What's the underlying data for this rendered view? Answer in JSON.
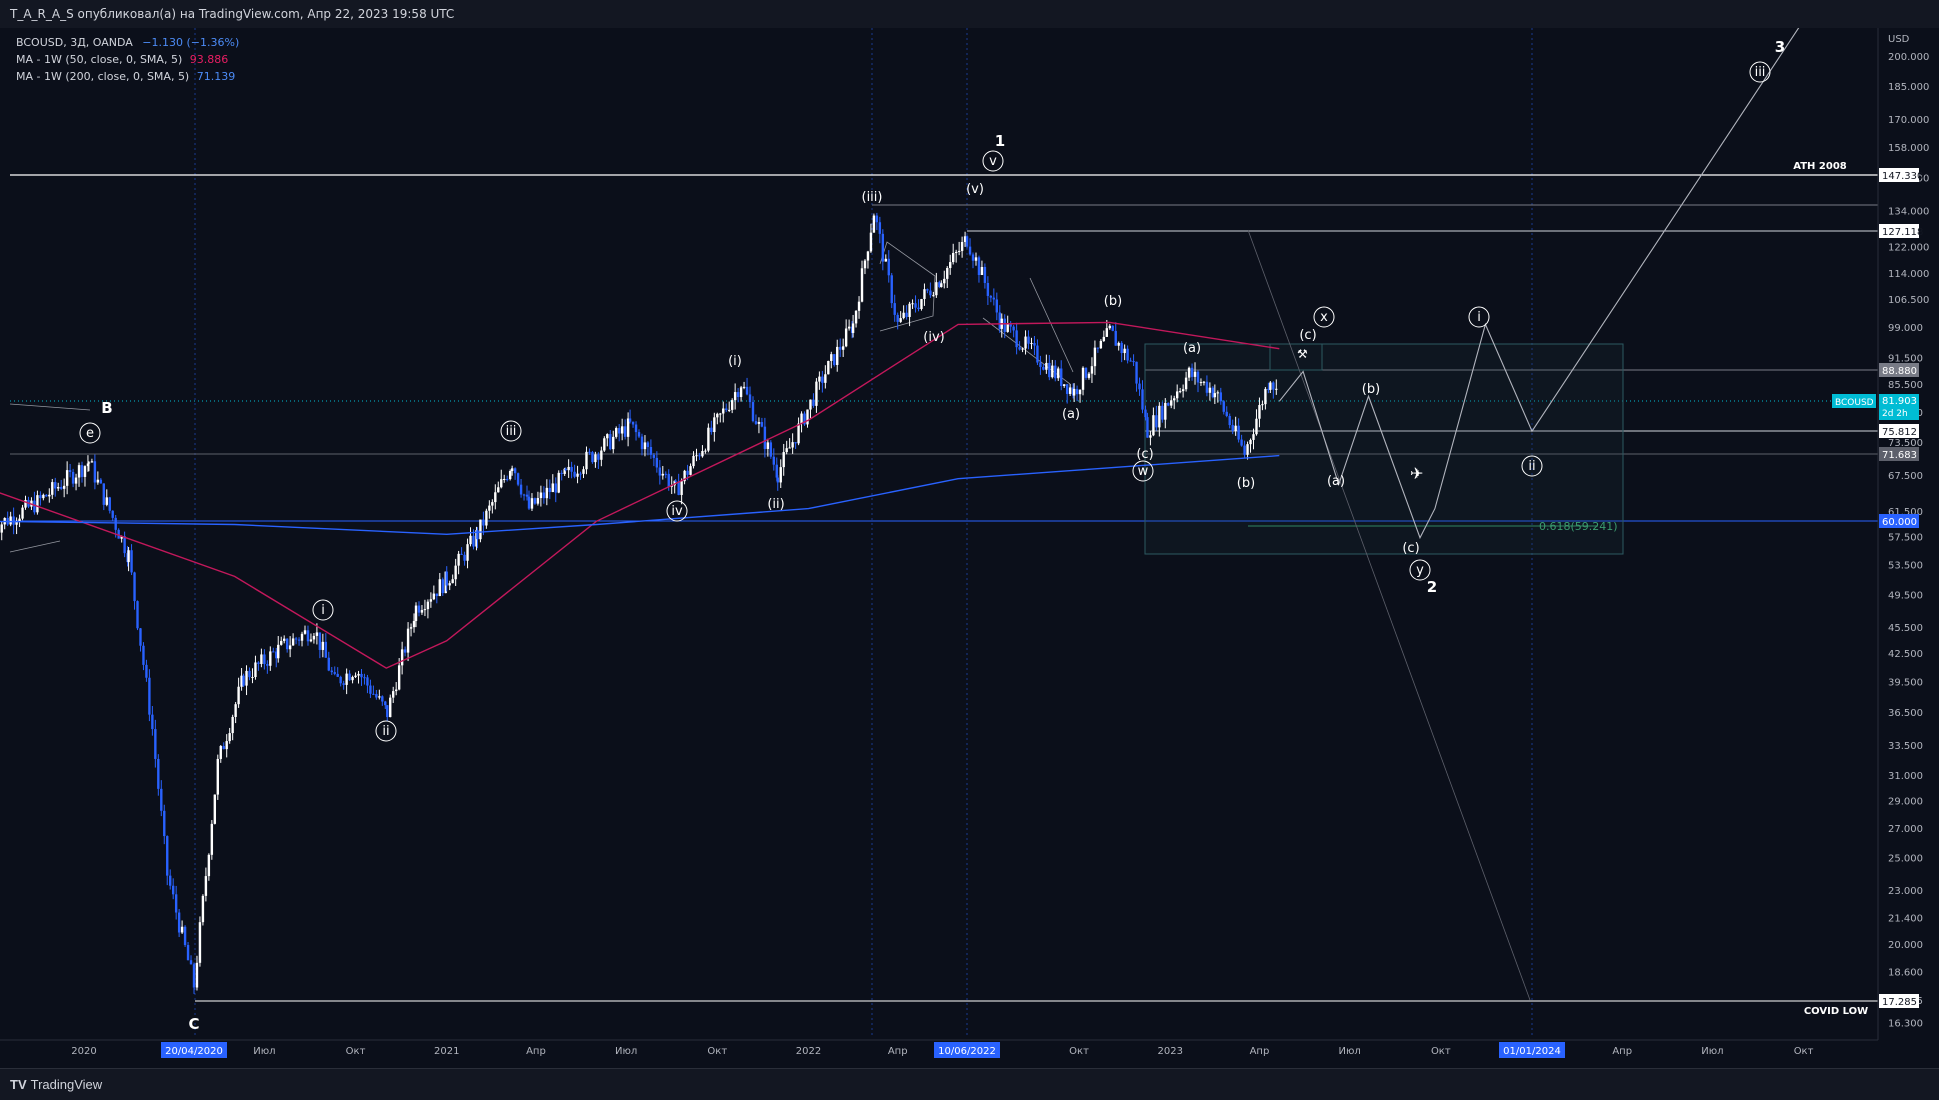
{
  "header": {
    "published": "T_A_R_A_S опубликовал(а) на TradingView.com, Апр 22, 2023 19:58 UTC"
  },
  "legend": {
    "symbol": "BCOUSD, 3Д, OANDA",
    "change": "−1.130 (−1.36%)",
    "ma50_label": "MA - 1W (50, close, 0, SMA, 5)",
    "ma50_value": "93.886",
    "ma200_label": "MA - 1W (200, close, 0, SMA, 5)",
    "ma200_value": "71.139"
  },
  "colors": {
    "background": "#0b0f1a",
    "up": "#ffffff",
    "down": "#2962ff",
    "ma50": "#c2185b",
    "ma200": "#2962ff",
    "change": "#4c8bf5",
    "fib": "#2e7d5b",
    "current_price": "#00bcd4"
  },
  "annotations": {
    "ath": "ATH 2008",
    "covid_low": "COVID LOW",
    "fib_label": "0.618(59.241)"
  },
  "price_labels": {
    "usd": "USD",
    "p147": "147.330",
    "p127": "127.118",
    "p88": "88.880",
    "p81": "81.903",
    "countdown": "2d 2h",
    "p75": "75.812",
    "p71": "71.683",
    "p60": "60.000",
    "p17": "17.285",
    "symbol_tag": "BCOUSD"
  },
  "date_labels": {
    "d1": "20/04/2020",
    "d2": "10/06/2022",
    "d3": "01/01/2024"
  },
  "waves": {
    "B": "B",
    "C": "C",
    "w1": "1",
    "w2": "2",
    "w3": "3",
    "e": "e",
    "i": "i",
    "ii": "ii",
    "iii": "iii",
    "iv": "iv",
    "v": "v",
    "w": "w",
    "x": "x",
    "y": "y",
    "pi": "(i)",
    "pii": "(ii)",
    "piii": "(iii)",
    "piv": "(iv)",
    "pv": "(v)",
    "pa": "(a)",
    "pb": "(b)",
    "pc": "(c)"
  },
  "footer": {
    "brand": "TradingView"
  },
  "chart_data": {
    "type": "candlestick",
    "symbol": "BCOUSD",
    "timeframe": "3Д",
    "exchange": "OANDA",
    "y_axis": {
      "scale": "log",
      "range": [
        16.3,
        210
      ],
      "ticks": [
        200,
        185,
        170,
        158,
        146,
        134,
        122,
        114,
        106.5,
        99,
        91.5,
        85.5,
        79.5,
        73.5,
        67.5,
        61.5,
        57.5,
        53.5,
        49.5,
        45.5,
        42.5,
        39.5,
        36.5,
        33.5,
        31,
        29,
        27,
        25,
        23,
        21.4,
        20,
        18.6,
        17.285,
        16.3
      ],
      "tick_labels": [
        "200.000",
        "185.000",
        "170.000",
        "158.000",
        "146.000",
        "134.000",
        "122.000",
        "114.000",
        "106.500",
        "99.000",
        "91.500",
        "85.500",
        "79.500",
        "73.500",
        "67.500",
        "61.500",
        "57.500",
        "53.500",
        "49.500",
        "45.500",
        "42.500",
        "39.500",
        "36.500",
        "33.500",
        "31.000",
        "29.000",
        "27.000",
        "25.000",
        "23.000",
        "21.400",
        "20.000",
        "18.600",
        "17.285",
        "16.300"
      ]
    },
    "x_axis": {
      "tick_labels": [
        "2020",
        "Июл",
        "Окт",
        "2021",
        "Апр",
        "Июл",
        "Окт",
        "2022",
        "Апр",
        "Окт",
        "2023",
        "Апр",
        "Июл",
        "Окт",
        "Апр",
        "Июл",
        "Окт"
      ],
      "range": [
        "2019-10-01",
        "2024-10-01"
      ]
    },
    "key_prices": {
      "last_price": 81.903,
      "ath_2008": 147.33,
      "covid_low": 17.285,
      "fib_0618": 59.241,
      "high_2022": 127.118
    },
    "price_path": [
      [
        "2019-10-01",
        59
      ],
      [
        "2019-11-15",
        63
      ],
      [
        "2020-01-06",
        70
      ],
      [
        "2020-02-15",
        55
      ],
      [
        "2020-03-10",
        35
      ],
      [
        "2020-03-25",
        24
      ],
      [
        "2020-04-21",
        18
      ],
      [
        "2020-05-15",
        32
      ],
      [
        "2020-06-10",
        40
      ],
      [
        "2020-07-15",
        43
      ],
      [
        "2020-08-20",
        45.5
      ],
      [
        "2020-09-10",
        39.5
      ],
      [
        "2020-10-01",
        41
      ],
      [
        "2020-11-02",
        36.5
      ],
      [
        "2020-12-01",
        48
      ],
      [
        "2021-01-01",
        51.5
      ],
      [
        "2021-02-01",
        58
      ],
      [
        "2021-03-08",
        70
      ],
      [
        "2021-03-25",
        62
      ],
      [
        "2021-05-01",
        67.5
      ],
      [
        "2021-07-05",
        77
      ],
      [
        "2021-08-20",
        65
      ],
      [
        "2021-10-25",
        86
      ],
      [
        "2021-12-01",
        68
      ],
      [
        "2022-01-15",
        87
      ],
      [
        "2022-02-15",
        100
      ],
      [
        "2022-03-08",
        134
      ],
      [
        "2022-04-01",
        100
      ],
      [
        "2022-05-15",
        113
      ],
      [
        "2022-06-10",
        125
      ],
      [
        "2022-07-15",
        100
      ],
      [
        "2022-08-20",
        92
      ],
      [
        "2022-09-26",
        84
      ],
      [
        "2022-11-01",
        98
      ],
      [
        "2022-11-25",
        90
      ],
      [
        "2022-12-09",
        76
      ],
      [
        "2023-01-20",
        88
      ],
      [
        "2023-02-15",
        84
      ],
      [
        "2023-03-17",
        71.5
      ],
      [
        "2023-04-12",
        87.5
      ],
      [
        "2023-04-21",
        81.9
      ]
    ],
    "ma50_path": [
      [
        "2019-10-01",
        65
      ],
      [
        "2020-06-01",
        52
      ],
      [
        "2020-11-01",
        41
      ],
      [
        "2021-01-01",
        44
      ],
      [
        "2021-06-01",
        60
      ],
      [
        "2022-01-01",
        78
      ],
      [
        "2022-06-01",
        100
      ],
      [
        "2022-11-01",
        100.5
      ],
      [
        "2023-04-21",
        93.886
      ]
    ],
    "ma200_path": [
      [
        "2019-10-01",
        60
      ],
      [
        "2020-06-01",
        59.5
      ],
      [
        "2021-01-01",
        58
      ],
      [
        "2021-06-01",
        59.5
      ],
      [
        "2022-01-01",
        62
      ],
      [
        "2022-06-01",
        67
      ],
      [
        "2023-04-21",
        71.139
      ]
    ],
    "projection_path": [
      [
        "2023-04-21",
        81.9
      ],
      [
        "2023-05-15",
        88.5
      ],
      [
        "2023-06-20",
        66
      ],
      [
        "2023-07-20",
        83
      ],
      [
        "2023-09-10",
        57.5
      ],
      [
        "2023-09-25",
        62
      ],
      [
        "2023-11-15",
        100
      ],
      [
        "2024-01-01",
        75.8
      ],
      [
        "2024-10-01",
        220
      ]
    ]
  }
}
